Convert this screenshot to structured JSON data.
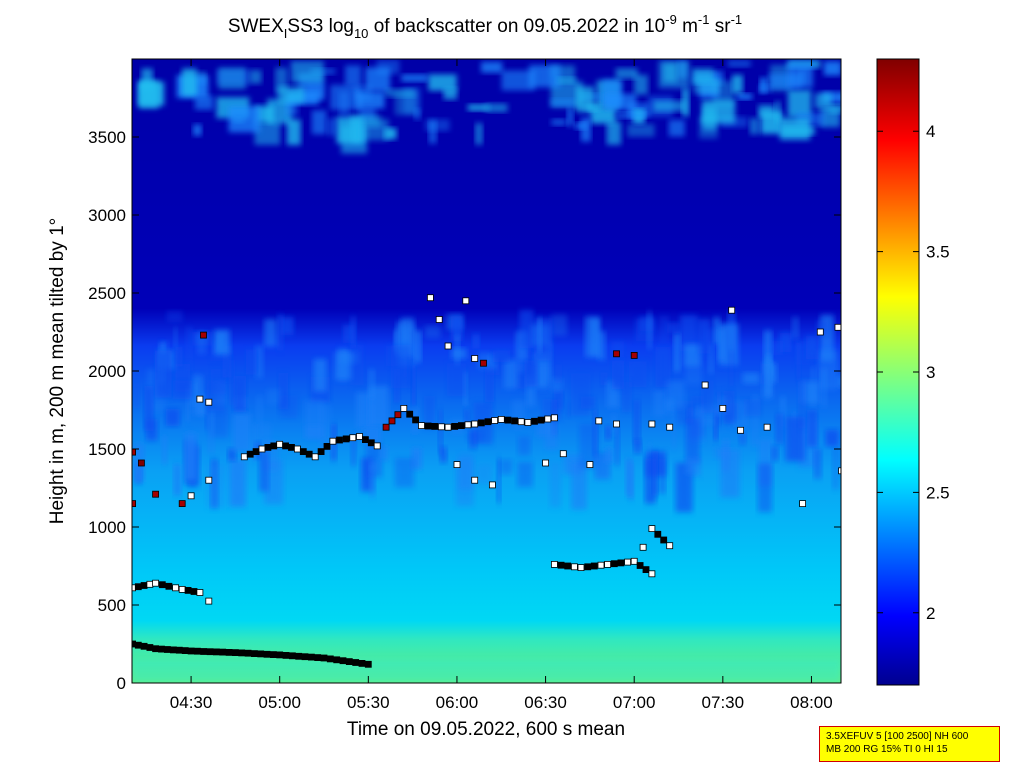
{
  "chart_data": {
    "type": "heatmap",
    "title": {
      "prefix": "SWEX",
      "sub": "I",
      "mid": "SS3 log",
      "log_base": "10",
      "after_log": " of backscatter on 09.05.2022 in 10",
      "exp1": "-9",
      "unit1": " m",
      "exp2": "-1",
      "unit2": " sr",
      "exp3": "-1"
    },
    "xlabel": "Time on 09.05.2022, 600 s mean",
    "ylabel": "Height in m, 200 m mean tilted by 1°",
    "x_ticks": [
      "04:30",
      "05:00",
      "05:30",
      "06:00",
      "06:30",
      "07:00",
      "07:30",
      "08:00"
    ],
    "x_range_hours": [
      4.1667,
      8.1667
    ],
    "y_ticks": [
      "0",
      "500",
      "1000",
      "1500",
      "2000",
      "2500",
      "3000",
      "3500"
    ],
    "y_range": [
      0,
      4000
    ],
    "colorbar_ticks": [
      "2",
      "2.5",
      "3",
      "3.5",
      "4"
    ],
    "colorbar_range": [
      1.7,
      4.3
    ],
    "colormap": [
      "#00008f",
      "#0000ff",
      "#00ffff",
      "#ffff00",
      "#ff0000",
      "#800000"
    ],
    "field_description_values": {
      "surface_layer_top_m": 260,
      "mixed_layer_top_m": 1500,
      "free_troposphere_low_m": 2300
    },
    "detected_layers": [
      {
        "name": "surface",
        "points": [
          [
            4.17,
            250,
            2.6
          ],
          [
            4.3,
            220,
            2.6
          ],
          [
            4.5,
            205,
            2.6
          ],
          [
            4.75,
            195,
            2.6
          ],
          [
            5.0,
            180,
            2.6
          ],
          [
            5.25,
            160,
            2.6
          ],
          [
            5.5,
            120,
            2.6
          ]
        ]
      },
      {
        "name": "residual",
        "points": [
          [
            4.17,
            610,
            2.6
          ],
          [
            4.3,
            640,
            2.6
          ],
          [
            4.45,
            600,
            2.6
          ],
          [
            4.55,
            580,
            2.6
          ],
          [
            4.6,
            525,
            2.7
          ]
        ]
      },
      {
        "name": "cloud-top-left",
        "points": [
          [
            4.17,
            1480,
            4.2
          ],
          [
            4.22,
            1410,
            4.3
          ],
          [
            4.17,
            1150,
            4.2
          ],
          [
            4.3,
            1210,
            4.2
          ],
          [
            4.45,
            1150,
            4.2
          ],
          [
            4.5,
            1200,
            2.6
          ],
          [
            4.6,
            1300,
            2.6
          ],
          [
            4.55,
            1820,
            2.6
          ],
          [
            4.6,
            1800,
            2.6
          ],
          [
            4.57,
            2230,
            4.2
          ]
        ]
      },
      {
        "name": "mixed-layer-top",
        "points": [
          [
            4.8,
            1450,
            2.6
          ],
          [
            4.9,
            1500,
            2.6
          ],
          [
            5.0,
            1530,
            2.6
          ],
          [
            5.1,
            1500,
            2.6
          ],
          [
            5.2,
            1450,
            2.6
          ],
          [
            5.3,
            1550,
            2.6
          ],
          [
            5.45,
            1580,
            2.6
          ],
          [
            5.55,
            1520,
            2.6
          ],
          [
            5.6,
            1640,
            4.2
          ],
          [
            5.7,
            1760,
            2.6
          ],
          [
            5.8,
            1650,
            2.6
          ],
          [
            5.95,
            1640,
            2.6
          ],
          [
            6.1,
            1660,
            2.6
          ],
          [
            6.25,
            1690,
            2.6
          ],
          [
            6.4,
            1670,
            2.6
          ],
          [
            6.55,
            1700,
            2.6
          ]
        ]
      },
      {
        "name": "upper-points",
        "points": [
          [
            5.85,
            2470,
            2.6
          ],
          [
            5.9,
            2330,
            2.6
          ],
          [
            5.95,
            2160,
            2.6
          ],
          [
            6.05,
            2450,
            2.6
          ],
          [
            6.1,
            2080,
            2.6
          ],
          [
            6.15,
            2050,
            4.2
          ],
          [
            6.9,
            2110,
            4.2
          ],
          [
            7.0,
            2100,
            4.2
          ]
        ]
      },
      {
        "name": "mid-right",
        "points": [
          [
            6.0,
            1400,
            2.6
          ],
          [
            6.1,
            1300,
            2.6
          ],
          [
            6.2,
            1270,
            2.6
          ],
          [
            6.5,
            1410,
            2.6
          ],
          [
            6.6,
            1470,
            2.6
          ],
          [
            6.75,
            1400,
            2.6
          ],
          [
            6.8,
            1680,
            2.6
          ],
          [
            6.9,
            1660,
            2.6
          ],
          [
            7.1,
            1660,
            2.6
          ],
          [
            7.2,
            1640,
            2.6
          ],
          [
            7.4,
            1910,
            2.6
          ],
          [
            7.5,
            1760,
            2.6
          ],
          [
            7.55,
            2390,
            2.6
          ],
          [
            7.6,
            1620,
            2.6
          ],
          [
            7.75,
            1640,
            2.6
          ],
          [
            7.95,
            1150,
            2.6
          ],
          [
            8.05,
            2250,
            2.6
          ],
          [
            8.15,
            2280,
            2.6
          ],
          [
            8.17,
            1360,
            2.6
          ]
        ]
      },
      {
        "name": "lower-right",
        "points": [
          [
            6.55,
            760,
            2.6
          ],
          [
            6.7,
            740,
            2.6
          ],
          [
            6.85,
            760,
            2.6
          ],
          [
            7.0,
            780,
            2.6
          ],
          [
            7.1,
            700,
            2.6
          ],
          [
            7.05,
            870,
            2.6
          ],
          [
            7.1,
            990,
            2.6
          ],
          [
            7.2,
            880,
            2.6
          ]
        ]
      }
    ]
  },
  "info_box": {
    "line1": "3.5XEFUV 5 [100 2500] NH 600",
    "line2": "MB 200 RG 15% TI 0 HI 15"
  }
}
